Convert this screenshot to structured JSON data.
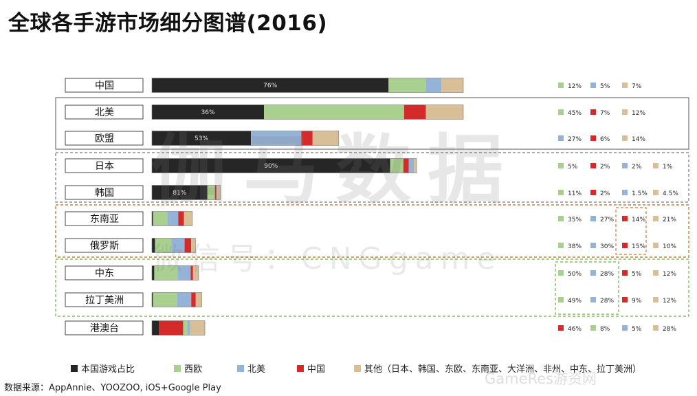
{
  "title": "全球各手游市场细分图谱(2016)",
  "source": "数据来源：AppAnnie、YOOZOO, iOS+Google Play",
  "watermark": {
    "main": "伽马数据",
    "sub": "微信号：CNGgame",
    "corner": "GameRes游资网"
  },
  "colors": {
    "domestic": "#262626",
    "europe": "#a9d08e",
    "north_america": "#95b3d7",
    "china": "#d42a2a",
    "other": "#d8bf98"
  },
  "legend": [
    {
      "label": "本国游戏占比",
      "color": "#262626"
    },
    {
      "label": "西欧",
      "color": "#a9d08e"
    },
    {
      "label": "北美",
      "color": "#95b3d7"
    },
    {
      "label": "中国",
      "color": "#d42a2a"
    },
    {
      "label": "其他（日本、韩国、东欧、东南亚、大洋洲、非州、中东、拉丁美洲）",
      "color": "#d8bf98"
    }
  ],
  "chart_data": {
    "type": "bar",
    "stacked": true,
    "orientation": "horizontal",
    "title": "全球各手游市场细分图谱(2016)",
    "categories": [
      "中国",
      "北美",
      "欧盟",
      "日本",
      "韩国",
      "东南亚",
      "俄罗斯",
      "中东",
      "拉丁美洲",
      "港澳台"
    ],
    "bars": [
      {
        "category": "中国",
        "segments": [
          {
            "origin": "本国",
            "value": 76,
            "label": "76%"
          },
          {
            "origin": "西欧",
            "value": 12
          },
          {
            "origin": "北美",
            "value": 5
          },
          {
            "origin": "其他",
            "value": 7
          }
        ]
      },
      {
        "category": "北美",
        "segments": [
          {
            "origin": "本国",
            "value": 36,
            "label": "36%"
          },
          {
            "origin": "西欧",
            "value": 45
          },
          {
            "origin": "中国",
            "value": 7
          },
          {
            "origin": "其他",
            "value": 12
          }
        ]
      },
      {
        "category": "欧盟",
        "segments": [
          {
            "origin": "本国",
            "value": 53,
            "label": "53%"
          },
          {
            "origin": "北美",
            "value": 27
          },
          {
            "origin": "中国",
            "value": 6
          },
          {
            "origin": "其他",
            "value": 14
          }
        ]
      },
      {
        "category": "日本",
        "segments": [
          {
            "origin": "本国",
            "value": 90,
            "label": "90%"
          },
          {
            "origin": "西欧",
            "value": 5
          },
          {
            "origin": "中国",
            "value": 2
          },
          {
            "origin": "北美",
            "value": 2
          },
          {
            "origin": "其他",
            "value": 1
          }
        ]
      },
      {
        "category": "韩国",
        "segments": [
          {
            "origin": "本国",
            "value": 81,
            "label": "81%"
          },
          {
            "origin": "西欧",
            "value": 11
          },
          {
            "origin": "中国",
            "value": 2
          },
          {
            "origin": "北美",
            "value": 1.5
          },
          {
            "origin": "其他",
            "value": 4.5
          }
        ]
      },
      {
        "category": "东南亚",
        "segments": [
          {
            "origin": "本国",
            "value": 3
          },
          {
            "origin": "西欧",
            "value": 35
          },
          {
            "origin": "北美",
            "value": 27
          },
          {
            "origin": "中国",
            "value": 14
          },
          {
            "origin": "其他",
            "value": 21
          }
        ]
      },
      {
        "category": "俄罗斯",
        "segments": [
          {
            "origin": "本国",
            "value": 7
          },
          {
            "origin": "西欧",
            "value": 38
          },
          {
            "origin": "北美",
            "value": 30
          },
          {
            "origin": "中国",
            "value": 15
          },
          {
            "origin": "其他",
            "value": 10
          }
        ]
      },
      {
        "category": "中东",
        "segments": [
          {
            "origin": "本国",
            "value": 5
          },
          {
            "origin": "西欧",
            "value": 50
          },
          {
            "origin": "北美",
            "value": 28
          },
          {
            "origin": "中国",
            "value": 5
          },
          {
            "origin": "其他",
            "value": 12
          }
        ]
      },
      {
        "category": "拉丁美洲",
        "segments": [
          {
            "origin": "本国",
            "value": 2
          },
          {
            "origin": "西欧",
            "value": 49
          },
          {
            "origin": "北美",
            "value": 28
          },
          {
            "origin": "中国",
            "value": 9
          },
          {
            "origin": "其他",
            "value": 12
          }
        ]
      },
      {
        "category": "港澳台",
        "segments": [
          {
            "origin": "本国",
            "value": 13
          },
          {
            "origin": "中国",
            "value": 46
          },
          {
            "origin": "西欧",
            "value": 8
          },
          {
            "origin": "北美",
            "value": 5
          },
          {
            "origin": "其他",
            "value": 28
          }
        ]
      }
    ],
    "bar_totals": [
      100,
      100,
      60,
      85,
      22,
      13,
      14,
      15,
      16,
      17
    ],
    "right_labels": [
      [
        {
          "origin": "西欧",
          "label": "12%"
        },
        {
          "origin": "北美",
          "label": "5%"
        },
        {
          "origin": "其他",
          "label": "7%"
        }
      ],
      [
        {
          "origin": "西欧",
          "label": "45%"
        },
        {
          "origin": "中国",
          "label": "7%"
        },
        {
          "origin": "其他",
          "label": "12%"
        }
      ],
      [
        {
          "origin": "北美",
          "label": "27%"
        },
        {
          "origin": "中国",
          "label": "6%"
        },
        {
          "origin": "其他",
          "label": "14%"
        }
      ],
      [
        {
          "origin": "西欧",
          "label": "5%"
        },
        {
          "origin": "中国",
          "label": "2%"
        },
        {
          "origin": "北美",
          "label": "2%"
        },
        {
          "origin": "其他",
          "label": "1%"
        }
      ],
      [
        {
          "origin": "西欧",
          "label": "11%"
        },
        {
          "origin": "中国",
          "label": "2%"
        },
        {
          "origin": "北美",
          "label": "1.5%"
        },
        {
          "origin": "其他",
          "label": "4.5%"
        }
      ],
      [
        {
          "origin": "西欧",
          "label": "35%"
        },
        {
          "origin": "北美",
          "label": "27%"
        },
        {
          "origin": "中国",
          "label": "14%"
        },
        {
          "origin": "其他",
          "label": "21%"
        }
      ],
      [
        {
          "origin": "西欧",
          "label": "38%"
        },
        {
          "origin": "北美",
          "label": "30%"
        },
        {
          "origin": "中国",
          "label": "15%"
        },
        {
          "origin": "其他",
          "label": "10%"
        }
      ],
      [
        {
          "origin": "西欧",
          "label": "50%"
        },
        {
          "origin": "北美",
          "label": "28%"
        },
        {
          "origin": "中国",
          "label": "5%"
        },
        {
          "origin": "其他",
          "label": "12%"
        }
      ],
      [
        {
          "origin": "西欧",
          "label": "49%"
        },
        {
          "origin": "北美",
          "label": "28%"
        },
        {
          "origin": "中国",
          "label": "9%"
        },
        {
          "origin": "其他",
          "label": "12%"
        }
      ],
      [
        {
          "origin": "中国",
          "label": "46%"
        },
        {
          "origin": "西欧",
          "label": "8%"
        },
        {
          "origin": "北美",
          "label": "5%"
        },
        {
          "origin": "其他",
          "label": "28%"
        }
      ]
    ],
    "legend_position": "bottom"
  }
}
